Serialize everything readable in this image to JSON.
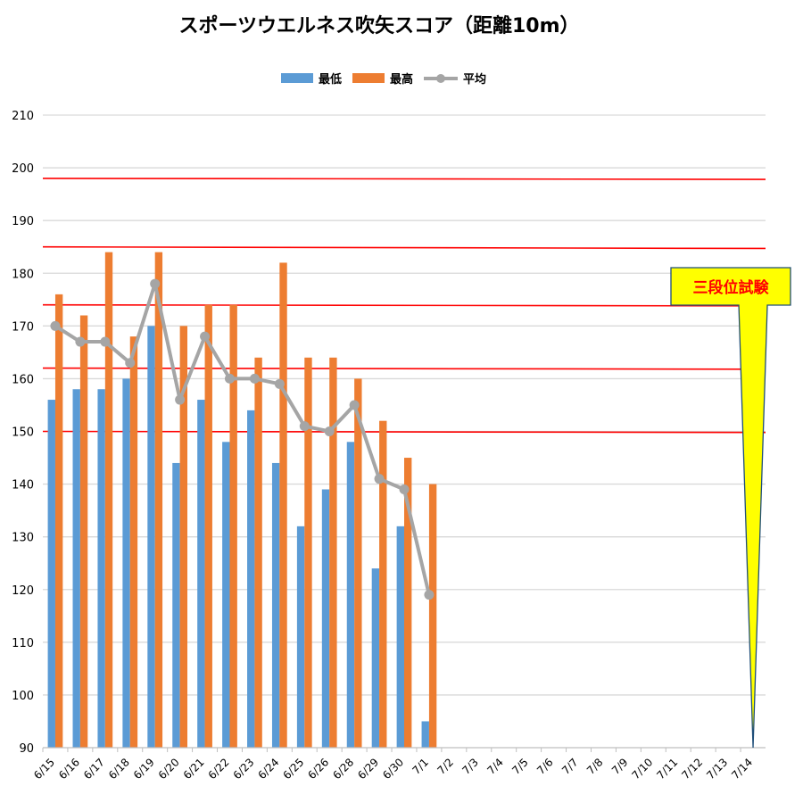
{
  "chart_data": {
    "type": "bar",
    "title": "スポーツウエルネス吹矢スコア（距離10m）",
    "categories": [
      "6/15",
      "6/16",
      "6/17",
      "6/18",
      "6/19",
      "6/20",
      "6/21",
      "6/22",
      "6/23",
      "6/24",
      "6/25",
      "6/26",
      "6/28",
      "6/29",
      "6/30",
      "7/1",
      "7/2",
      "7/3",
      "7/4",
      "7/5",
      "7/6",
      "7/7",
      "7/8",
      "7/9",
      "7/10",
      "7/11",
      "7/12",
      "7/13",
      "7/14"
    ],
    "series": [
      {
        "name": "最低",
        "type": "bar",
        "color": "#5b9bd5",
        "values": [
          156,
          158,
          158,
          160,
          170,
          144,
          156,
          148,
          154,
          144,
          132,
          139,
          148,
          124,
          132,
          95,
          null,
          null,
          null,
          null,
          null,
          null,
          null,
          null,
          null,
          null,
          null,
          null,
          null
        ]
      },
      {
        "name": "最高",
        "type": "bar",
        "color": "#ed7d31",
        "values": [
          176,
          172,
          184,
          168,
          184,
          170,
          174,
          174,
          164,
          182,
          164,
          164,
          160,
          152,
          145,
          140,
          null,
          null,
          null,
          null,
          null,
          null,
          null,
          null,
          null,
          null,
          null,
          null,
          null
        ]
      },
      {
        "name": "平均",
        "type": "line",
        "color": "#a5a5a5",
        "values": [
          170,
          167,
          167,
          163,
          178,
          156,
          168,
          160,
          160,
          159,
          151,
          150,
          155,
          141,
          139,
          119,
          null,
          null,
          null,
          null,
          null,
          null,
          null,
          null,
          null,
          null,
          null,
          null,
          null
        ]
      }
    ],
    "ylim": [
      90,
      210
    ],
    "yticks": [
      90,
      100,
      110,
      120,
      130,
      140,
      150,
      160,
      170,
      180,
      190,
      200,
      210
    ],
    "grid": true,
    "legend_position": "top-center",
    "reference_lines": [
      {
        "y1": 198,
        "y2": 197.8,
        "color": "#ff0000"
      },
      {
        "y1": 185,
        "y2": 184.7,
        "color": "#ff0000"
      },
      {
        "y1": 174,
        "y2": 173.8,
        "color": "#ff0000"
      },
      {
        "y1": 162,
        "y2": 161.8,
        "color": "#ff0000"
      },
      {
        "y1": 150,
        "y2": 149.8,
        "color": "#ff0000"
      }
    ],
    "annotation": {
      "text": "三段位試験",
      "category": "7/14",
      "y": 90,
      "fill": "#ffff00",
      "border": "#1f4e79",
      "text_color": "#ff0000"
    }
  }
}
